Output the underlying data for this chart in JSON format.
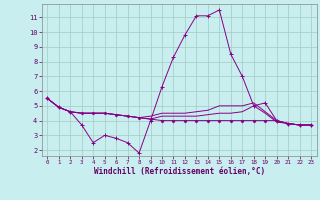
{
  "xlabel": "Windchill (Refroidissement éolien,°C)",
  "bg_color": "#c8eef0",
  "line_color": "#880088",
  "grid_color": "#a0ccbe",
  "xlim": [
    -0.5,
    23.5
  ],
  "ylim": [
    1.6,
    11.9
  ],
  "yticks": [
    2,
    3,
    4,
    5,
    6,
    7,
    8,
    9,
    10,
    11
  ],
  "xticks": [
    0,
    1,
    2,
    3,
    4,
    5,
    6,
    7,
    8,
    9,
    10,
    11,
    12,
    13,
    14,
    15,
    16,
    17,
    18,
    19,
    20,
    21,
    22,
    23
  ],
  "s1x": [
    0,
    1,
    2,
    3,
    4,
    5,
    6,
    7,
    8,
    9,
    10,
    11,
    12,
    13,
    14,
    15,
    16,
    17,
    18,
    19,
    20,
    21,
    22,
    23
  ],
  "s1y": [
    5.5,
    4.9,
    4.6,
    3.7,
    2.5,
    3.0,
    2.8,
    2.5,
    1.8,
    4.0,
    6.3,
    8.3,
    9.8,
    11.1,
    11.1,
    11.5,
    8.5,
    7.0,
    5.0,
    5.2,
    4.0,
    3.8,
    3.7,
    3.7
  ],
  "s2x": [
    0,
    1,
    2,
    3,
    4,
    5,
    6,
    7,
    8,
    9,
    10,
    11,
    12,
    13,
    14,
    15,
    16,
    17,
    18,
    19,
    20,
    21,
    22,
    23
  ],
  "s2y": [
    5.5,
    4.9,
    4.6,
    4.5,
    4.5,
    4.5,
    4.4,
    4.3,
    4.2,
    4.3,
    4.5,
    4.5,
    4.5,
    4.6,
    4.7,
    5.0,
    5.0,
    5.0,
    5.2,
    4.6,
    4.0,
    3.8,
    3.7,
    3.7
  ],
  "s3x": [
    0,
    1,
    2,
    3,
    4,
    5,
    6,
    7,
    8,
    9,
    10,
    11,
    12,
    13,
    14,
    15,
    16,
    17,
    18,
    19,
    20,
    21,
    22,
    23
  ],
  "s3y": [
    5.5,
    4.9,
    4.6,
    4.5,
    4.5,
    4.5,
    4.4,
    4.3,
    4.2,
    4.1,
    4.3,
    4.3,
    4.3,
    4.3,
    4.4,
    4.5,
    4.5,
    4.6,
    5.0,
    4.5,
    3.9,
    3.8,
    3.7,
    3.7
  ],
  "s4x": [
    0,
    1,
    2,
    3,
    4,
    5,
    6,
    7,
    8,
    9,
    10,
    11,
    12,
    13,
    14,
    15,
    16,
    17,
    18,
    19,
    20,
    21,
    22,
    23
  ],
  "s4y": [
    5.5,
    4.9,
    4.6,
    4.5,
    4.5,
    4.5,
    4.4,
    4.3,
    4.2,
    4.1,
    4.0,
    4.0,
    4.0,
    4.0,
    4.0,
    4.0,
    4.0,
    4.0,
    4.0,
    4.0,
    4.0,
    3.8,
    3.7,
    3.7
  ]
}
